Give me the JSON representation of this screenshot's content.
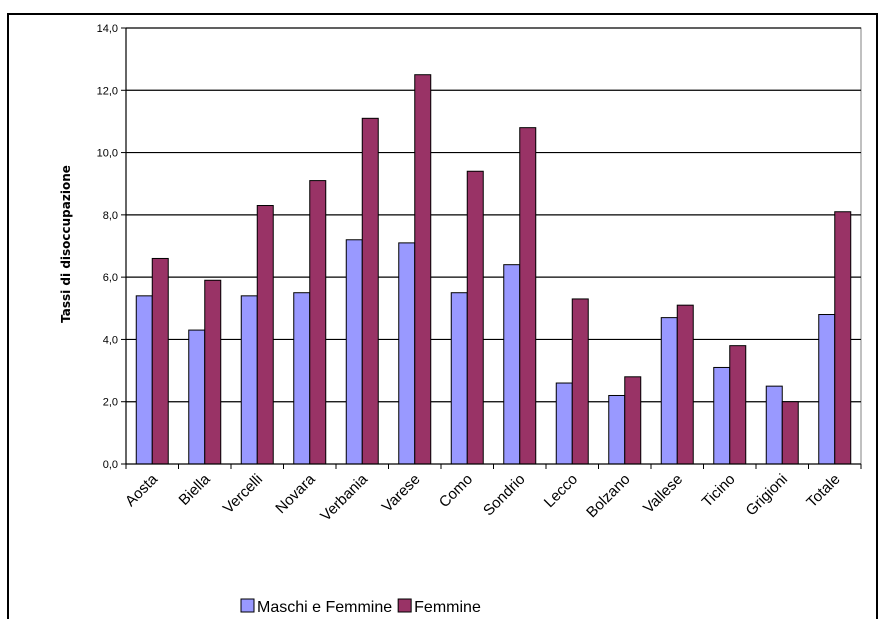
{
  "chart_data": {
    "type": "bar",
    "ylabel": "Tassi di disoccupazione",
    "xlabel": "",
    "ylim": [
      0,
      14
    ],
    "yticks": [
      0,
      2,
      4,
      6,
      8,
      10,
      12,
      14
    ],
    "ytick_labels": [
      "0,0",
      "2,0",
      "4,0",
      "6,0",
      "8,0",
      "10,0",
      "12,0",
      "14,0"
    ],
    "grid": true,
    "legend_position": "bottom",
    "categories": [
      "Aosta",
      "Biella",
      "Vercelli",
      "Novara",
      "Verbania",
      "Varese",
      "Como",
      "Sondrio",
      "Lecco",
      "Bolzano",
      "Vallese",
      "Ticino",
      "Grigioni",
      "Totale"
    ],
    "series": [
      {
        "name": "Maschi e Femmine",
        "color": "#9999ff",
        "values": [
          5.4,
          4.3,
          5.4,
          5.5,
          7.2,
          7.1,
          5.5,
          6.4,
          2.6,
          2.2,
          4.7,
          3.1,
          2.5,
          4.8
        ]
      },
      {
        "name": "Femmine",
        "color": "#993366",
        "values": [
          6.6,
          5.9,
          8.3,
          9.1,
          11.1,
          12.5,
          9.4,
          10.8,
          5.3,
          2.8,
          5.1,
          3.8,
          2.0,
          8.1
        ]
      }
    ]
  }
}
